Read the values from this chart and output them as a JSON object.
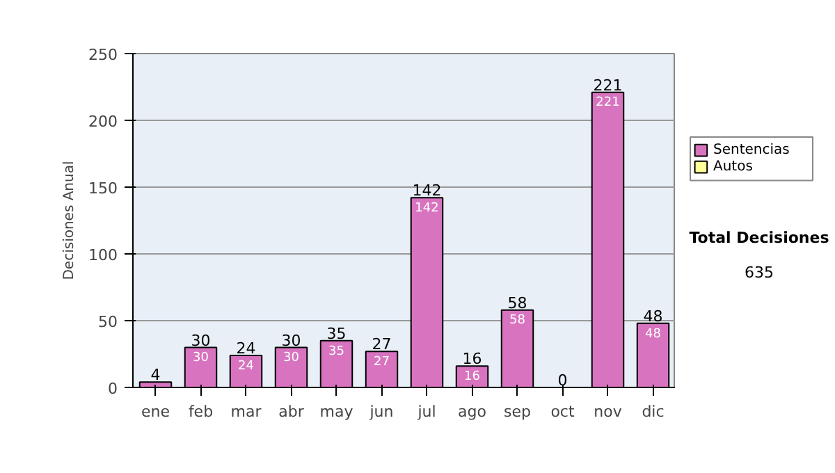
{
  "chart_data": {
    "type": "bar",
    "ylabel": "Decisiones Anual",
    "categories": [
      "ene",
      "feb",
      "mar",
      "abr",
      "may",
      "jun",
      "jul",
      "ago",
      "sep",
      "oct",
      "nov",
      "dic"
    ],
    "series": [
      {
        "name": "Sentencias",
        "color": "#d873c0",
        "values": [
          4,
          30,
          24,
          30,
          35,
          27,
          142,
          16,
          58,
          0,
          221,
          48
        ],
        "value_labels": [
          null,
          "30",
          "24",
          "30",
          "35",
          "27",
          "142",
          "16",
          "58",
          null,
          "221",
          "48"
        ]
      },
      {
        "name": "Autos",
        "color": "#ffff99",
        "values": [
          null,
          null,
          null,
          null,
          null,
          null,
          null,
          null,
          null,
          null,
          null,
          null
        ]
      }
    ],
    "stacked": true,
    "ylim": [
      0,
      250
    ],
    "yticks": [
      0,
      50,
      100,
      150,
      200,
      250
    ],
    "grid": "y",
    "legend": "right",
    "totals": [
      "4",
      "30",
      "24",
      "30",
      "35",
      "27",
      "142",
      "16",
      "58",
      "0",
      "221",
      "48"
    ],
    "annotations": [
      "Total Decisiones",
      "635"
    ]
  }
}
